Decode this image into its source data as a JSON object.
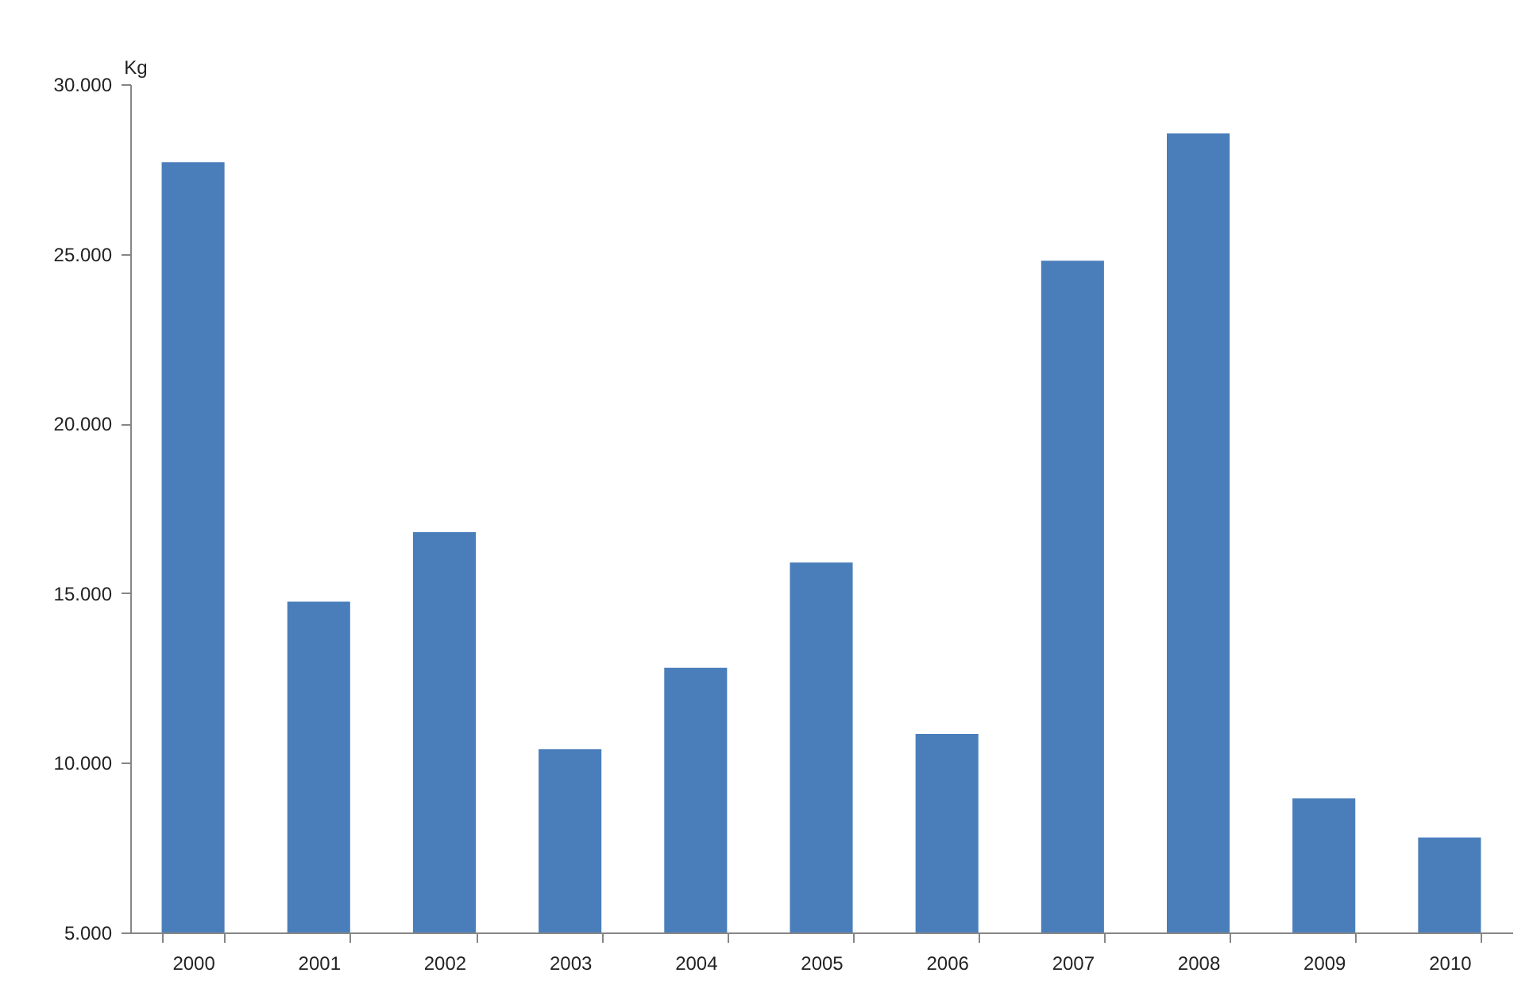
{
  "chart_data": {
    "type": "bar",
    "ylabel": "Kg",
    "categories": [
      "2000",
      "2001",
      "2002",
      "2003",
      "2004",
      "2005",
      "2006",
      "2007",
      "2008",
      "2009",
      "2010"
    ],
    "values": [
      27700,
      14750,
      16800,
      10400,
      12800,
      15900,
      10850,
      24800,
      28550,
      8950,
      7800
    ],
    "color": "#4a7ebb",
    "ylim": [
      5000,
      30000
    ],
    "yticks": [
      {
        "value": 5000,
        "label": "5.000"
      },
      {
        "value": 10000,
        "label": "10.000"
      },
      {
        "value": 15000,
        "label": "15.000"
      },
      {
        "value": 20000,
        "label": "20.000"
      },
      {
        "value": 25000,
        "label": "25.000"
      },
      {
        "value": 30000,
        "label": "30.000"
      }
    ],
    "grid": false
  }
}
